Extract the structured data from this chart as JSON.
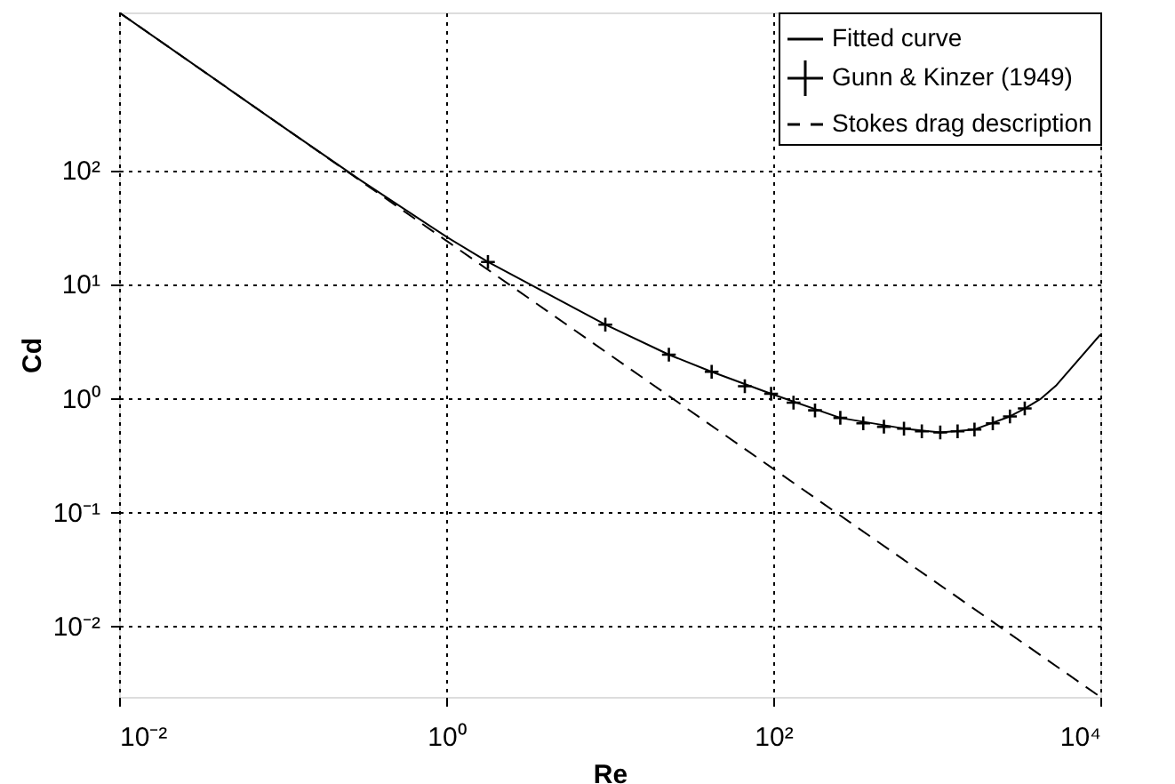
{
  "chart_data": {
    "type": "line",
    "xlabel": "Re",
    "ylabel": "Cd",
    "log": "xy",
    "grid": true,
    "legend": "top right",
    "xlim": [
      0.01,
      10000
    ],
    "ylim": [
      0.0024,
      2400
    ],
    "xticks": [
      {
        "value": 0.01,
        "label": "10⁻²"
      },
      {
        "value": 1,
        "label": "10⁰"
      },
      {
        "value": 100,
        "label": "10²"
      },
      {
        "value": 10000,
        "label": "10⁴"
      }
    ],
    "yticks": [
      {
        "value": 0.01,
        "label": "10⁻²"
      },
      {
        "value": 0.1,
        "label": "10⁻¹"
      },
      {
        "value": 1,
        "label": "10⁰"
      },
      {
        "value": 10,
        "label": "10¹"
      },
      {
        "value": 100,
        "label": "10²"
      }
    ],
    "series": [
      {
        "name": "Fitted curve",
        "color": "#000000",
        "line_style": "solid",
        "marker": "none",
        "x": [
          0.01,
          0.1,
          0.3,
          1,
          1.8,
          9.4,
          23,
          42,
          97,
          257,
          630,
          1050,
          1700,
          2800,
          3450,
          4300,
          5400,
          10000
        ],
        "values": [
          2400,
          240,
          81,
          26,
          15.6,
          4.4,
          2.4,
          1.7,
          1.09,
          0.67,
          0.54,
          0.5,
          0.53,
          0.69,
          0.81,
          0.98,
          1.3,
          3.6
        ]
      },
      {
        "name": "Gunn & Kinzer (1949)",
        "type": "scatter",
        "color": "#000000",
        "marker": "cross",
        "x": [
          1.8,
          9.4,
          23,
          42,
          67,
          97,
          133,
          180,
          257,
          355,
          475,
          630,
          810,
          1050,
          1340,
          1700,
          2200,
          2800,
          3450
        ],
        "values": [
          15.6,
          4.4,
          2.4,
          1.7,
          1.27,
          1.09,
          0.91,
          0.78,
          0.67,
          0.6,
          0.56,
          0.54,
          0.51,
          0.5,
          0.51,
          0.53,
          0.6,
          0.69,
          0.81
        ]
      },
      {
        "name": "Stokes drag description",
        "color": "#000000",
        "line_style": "dashed",
        "marker": "none",
        "x": [
          0.01,
          10000
        ],
        "values": [
          2400,
          0.0024
        ]
      }
    ]
  }
}
